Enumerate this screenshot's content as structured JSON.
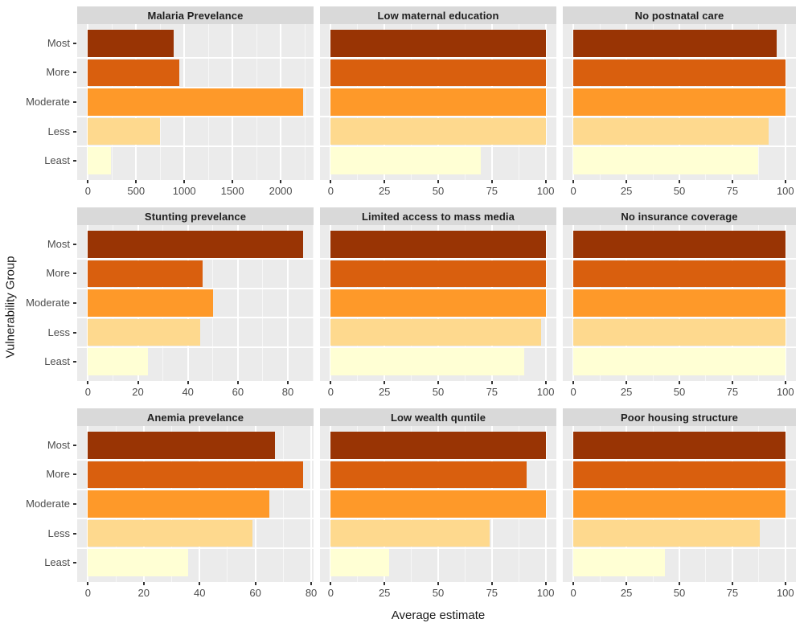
{
  "figure": {
    "xlabel": "Average estimate",
    "ylabel": "Vulnerability Group"
  },
  "chart_data": {
    "type": "bar",
    "orientation": "horizontal",
    "layout": "3x3 facet grid, free x scales",
    "xlabel": "Average estimate",
    "ylabel": "Vulnerability Group",
    "categories_top_to_bottom": [
      "Most",
      "More",
      "Moderate",
      "Less",
      "Least"
    ],
    "bar_colors_top_to_bottom": [
      "#993404",
      "#D95F0E",
      "#FE9929",
      "#FED98E",
      "#FFFFD4"
    ],
    "panel_bg": "#EBEBEB",
    "strip_bg": "#D9D9D9",
    "grid_color": "#FFFFFF",
    "axis_text_color": "#4D4D4D",
    "grid": true,
    "legend": "none",
    "panels": [
      {
        "title": "Malaria Prevelance",
        "values": [
          890,
          950,
          2230,
          750,
          240
        ],
        "xticks": [
          0,
          500,
          1000,
          1500,
          2000
        ],
        "xlim": [
          0,
          2230
        ]
      },
      {
        "title": "Low maternal education",
        "values": [
          100,
          100,
          100,
          100,
          70
        ],
        "xticks": [
          0,
          25,
          50,
          75,
          100
        ],
        "xlim": [
          0,
          100
        ]
      },
      {
        "title": "No postnatal care",
        "values": [
          96,
          100,
          100,
          92,
          87
        ],
        "xticks": [
          0,
          25,
          50,
          75,
          100
        ],
        "xlim": [
          0,
          100
        ]
      },
      {
        "title": "Stunting prevelance",
        "values": [
          86,
          46,
          50,
          45,
          24
        ],
        "xticks": [
          0,
          20,
          40,
          60,
          80
        ],
        "xlim": [
          0,
          86
        ]
      },
      {
        "title": "Limited access to mass media",
        "values": [
          100,
          100,
          100,
          98,
          90
        ],
        "xticks": [
          0,
          25,
          50,
          75,
          100
        ],
        "xlim": [
          0,
          100
        ]
      },
      {
        "title": "No insurance coverage",
        "values": [
          100,
          100,
          100,
          100,
          100
        ],
        "xticks": [
          0,
          25,
          50,
          75,
          100
        ],
        "xlim": [
          0,
          100
        ]
      },
      {
        "title": "Anemia prevelance",
        "values": [
          67,
          77,
          65,
          59,
          36
        ],
        "xticks": [
          0,
          20,
          40,
          60,
          80
        ],
        "xlim": [
          0,
          77
        ]
      },
      {
        "title": "Low wealth quntile",
        "values": [
          100,
          91,
          100,
          74,
          27
        ],
        "xticks": [
          0,
          25,
          50,
          75,
          100
        ],
        "xlim": [
          0,
          100
        ]
      },
      {
        "title": "Poor housing structure",
        "values": [
          100,
          100,
          100,
          88,
          43
        ],
        "xticks": [
          0,
          25,
          50,
          75,
          100
        ],
        "xlim": [
          0,
          100
        ]
      }
    ]
  }
}
